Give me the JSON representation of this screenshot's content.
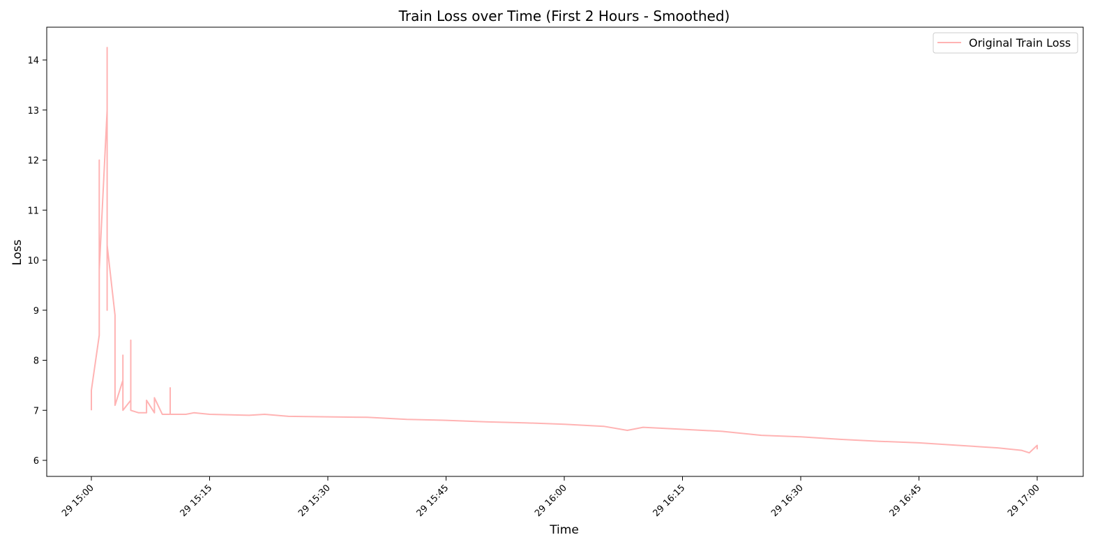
{
  "chart_data": {
    "type": "line",
    "title": "Train Loss over Time (First 2 Hours - Smoothed)",
    "xlabel": "Time",
    "ylabel": "Loss",
    "x_range": [
      "29 15:00",
      "29 17:00"
    ],
    "ylim": [
      5.68,
      14.6
    ],
    "x_ticks": [
      "29 15:00",
      "29 15:15",
      "29 15:30",
      "29 15:45",
      "29 16:00",
      "29 16:15",
      "29 16:30",
      "29 16:45",
      "29 17:00"
    ],
    "y_ticks": [
      6,
      7,
      8,
      9,
      10,
      11,
      12,
      13,
      14
    ],
    "grid": false,
    "legend_position": "top-right",
    "series": [
      {
        "name": "Original Train Loss",
        "color": "#ffb3b3",
        "points": [
          [
            "29 15:00",
            7.0
          ],
          [
            "29 15:00",
            7.4
          ],
          [
            "29 15:01",
            8.5
          ],
          [
            "29 15:01",
            10.6
          ],
          [
            "29 15:01",
            12.0
          ],
          [
            "29 15:01",
            10.2
          ],
          [
            "29 15:01",
            11.7
          ],
          [
            "29 15:01",
            9.8
          ],
          [
            "29 15:02",
            13.0
          ],
          [
            "29 15:02",
            13.6
          ],
          [
            "29 15:02",
            9.2
          ],
          [
            "29 15:02",
            10.5
          ],
          [
            "29 15:02",
            12.4
          ],
          [
            "29 15:02",
            9.6
          ],
          [
            "29 15:02",
            12.5
          ],
          [
            "29 15:02",
            10.0
          ],
          [
            "29 15:02",
            14.25
          ],
          [
            "29 15:02",
            9.0
          ],
          [
            "29 15:02",
            10.3
          ],
          [
            "29 15:03",
            8.9
          ],
          [
            "29 15:03",
            7.6
          ],
          [
            "29 15:03",
            7.9
          ],
          [
            "29 15:03",
            7.1
          ],
          [
            "29 15:04",
            7.6
          ],
          [
            "29 15:04",
            7.0
          ],
          [
            "29 15:04",
            8.1
          ],
          [
            "29 15:04",
            7.0
          ],
          [
            "29 15:05",
            7.2
          ],
          [
            "29 15:05",
            8.4
          ],
          [
            "29 15:05",
            7.0
          ],
          [
            "29 15:06",
            6.95
          ],
          [
            "29 15:07",
            6.95
          ],
          [
            "29 15:07",
            7.2
          ],
          [
            "29 15:08",
            6.95
          ],
          [
            "29 15:08",
            7.25
          ],
          [
            "29 15:09",
            6.92
          ],
          [
            "29 15:10",
            6.92
          ],
          [
            "29 15:10",
            7.45
          ],
          [
            "29 15:10",
            6.92
          ],
          [
            "29 15:12",
            6.92
          ],
          [
            "29 15:13",
            6.95
          ],
          [
            "29 15:15",
            6.92
          ],
          [
            "29 15:20",
            6.9
          ],
          [
            "29 15:22",
            6.92
          ],
          [
            "29 15:25",
            6.88
          ],
          [
            "29 15:30",
            6.87
          ],
          [
            "29 15:35",
            6.86
          ],
          [
            "29 15:40",
            6.82
          ],
          [
            "29 15:45",
            6.8
          ],
          [
            "29 15:50",
            6.77
          ],
          [
            "29 15:55",
            6.75
          ],
          [
            "29 16:00",
            6.72
          ],
          [
            "29 16:05",
            6.68
          ],
          [
            "29 16:08",
            6.6
          ],
          [
            "29 16:10",
            6.66
          ],
          [
            "29 16:15",
            6.62
          ],
          [
            "29 16:20",
            6.58
          ],
          [
            "29 16:25",
            6.5
          ],
          [
            "29 16:30",
            6.47
          ],
          [
            "29 16:35",
            6.42
          ],
          [
            "29 16:40",
            6.38
          ],
          [
            "29 16:45",
            6.35
          ],
          [
            "29 16:50",
            6.3
          ],
          [
            "29 16:55",
            6.25
          ],
          [
            "29 16:58",
            6.2
          ],
          [
            "29 16:59",
            6.15
          ],
          [
            "29 17:00",
            6.3
          ],
          [
            "29 17:00",
            6.22
          ]
        ]
      }
    ]
  }
}
